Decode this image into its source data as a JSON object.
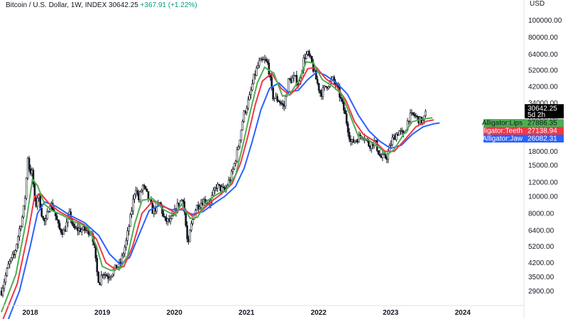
{
  "header": {
    "symbol": "Bitcoin / U.S. Dollar, 1W, INDEX",
    "price": "30642.25",
    "change": "+367.91 (+1.22%)"
  },
  "y_axis_unit": "USD",
  "price_tag": {
    "value": "30642.25",
    "countdown": "5d 2h"
  },
  "indicators": [
    {
      "name": "Alligator:Lips",
      "value": "27886.35",
      "color": "#4caf50"
    },
    {
      "name": "Alligator:Teeth",
      "value": "27138.94",
      "color": "#f23645"
    },
    {
      "name": "Alligator:Jaw",
      "value": "26082.31",
      "color": "#2962ff"
    }
  ],
  "colors": {
    "candle": "#131722",
    "background": "#ffffff",
    "tag_bg": "#000000"
  },
  "chart_data": {
    "type": "line",
    "scale": "log",
    "y_ticks": [
      100000,
      80000,
      64000,
      52000,
      42000,
      34000,
      28000,
      22000,
      18000,
      15000,
      12000,
      10000,
      8000,
      6400,
      5200,
      4200,
      3500,
      2900
    ],
    "y_tick_labels": [
      "100000.00",
      "80000.00",
      "64000.00",
      "52000.00",
      "42000.00",
      "34000.00",
      "28000.00",
      "22000.00",
      "18000.00",
      "15000.00",
      "12000.00",
      "10000.00",
      "8000.00",
      "6400.00",
      "5200.00",
      "4200.00",
      "3500.00",
      "2900.00"
    ],
    "x_tick_labels": [
      "2018",
      "2019",
      "2020",
      "2021",
      "2022",
      "2023",
      "2024"
    ],
    "x_ticks": [
      2018,
      2019,
      2020,
      2021,
      2022,
      2023,
      2024
    ],
    "x_range": [
      2017.58,
      2024.85
    ],
    "y_range": [
      2400,
      130000
    ],
    "price_points": [
      [
        2017.6,
        2900
      ],
      [
        2017.7,
        4100
      ],
      [
        2017.78,
        4700
      ],
      [
        2017.85,
        6500
      ],
      [
        2017.9,
        8000
      ],
      [
        2017.94,
        11000
      ],
      [
        2017.96,
        17500
      ],
      [
        2017.99,
        14000
      ],
      [
        2018.03,
        13500
      ],
      [
        2018.07,
        8500
      ],
      [
        2018.11,
        10500
      ],
      [
        2018.17,
        7500
      ],
      [
        2018.21,
        7000
      ],
      [
        2018.27,
        9300
      ],
      [
        2018.33,
        8300
      ],
      [
        2018.4,
        6500
      ],
      [
        2018.47,
        6300
      ],
      [
        2018.55,
        8000
      ],
      [
        2018.6,
        6500
      ],
      [
        2018.68,
        6500
      ],
      [
        2018.78,
        6400
      ],
      [
        2018.85,
        6300
      ],
      [
        2018.88,
        5500
      ],
      [
        2018.92,
        3800
      ],
      [
        2018.96,
        3200
      ],
      [
        2019.0,
        3750
      ],
      [
        2019.08,
        3500
      ],
      [
        2019.18,
        3900
      ],
      [
        2019.25,
        4100
      ],
      [
        2019.33,
        5500
      ],
      [
        2019.4,
        8000
      ],
      [
        2019.46,
        11500
      ],
      [
        2019.5,
        9500
      ],
      [
        2019.56,
        11500
      ],
      [
        2019.63,
        10000
      ],
      [
        2019.7,
        8200
      ],
      [
        2019.8,
        9200
      ],
      [
        2019.86,
        7300
      ],
      [
        2019.95,
        7200
      ],
      [
        2020.05,
        9000
      ],
      [
        2020.12,
        9800
      ],
      [
        2020.19,
        5000
      ],
      [
        2020.22,
        6500
      ],
      [
        2020.3,
        8700
      ],
      [
        2020.4,
        9500
      ],
      [
        2020.5,
        9200
      ],
      [
        2020.58,
        11500
      ],
      [
        2020.7,
        10700
      ],
      [
        2020.8,
        13500
      ],
      [
        2020.88,
        18500
      ],
      [
        2020.96,
        29000
      ],
      [
        2021.04,
        36000
      ],
      [
        2021.1,
        47000
      ],
      [
        2021.17,
        57000
      ],
      [
        2021.25,
        59000
      ],
      [
        2021.3,
        56000
      ],
      [
        2021.36,
        37000
      ],
      [
        2021.45,
        35000
      ],
      [
        2021.52,
        32000
      ],
      [
        2021.58,
        45000
      ],
      [
        2021.67,
        47000
      ],
      [
        2021.73,
        43000
      ],
      [
        2021.8,
        62000
      ],
      [
        2021.85,
        64000
      ],
      [
        2021.9,
        58000
      ],
      [
        2021.96,
        47000
      ],
      [
        2022.03,
        38000
      ],
      [
        2022.1,
        42000
      ],
      [
        2022.2,
        46000
      ],
      [
        2022.28,
        39000
      ],
      [
        2022.36,
        30000
      ],
      [
        2022.45,
        20000
      ],
      [
        2022.52,
        21000
      ],
      [
        2022.62,
        22500
      ],
      [
        2022.7,
        19500
      ],
      [
        2022.78,
        20500
      ],
      [
        2022.86,
        16500
      ],
      [
        2022.95,
        16800
      ],
      [
        2023.02,
        21000
      ],
      [
        2023.12,
        23500
      ],
      [
        2023.18,
        22000
      ],
      [
        2023.25,
        28000
      ],
      [
        2023.32,
        29000
      ],
      [
        2023.4,
        27000
      ],
      [
        2023.45,
        26500
      ],
      [
        2023.5,
        30642
      ]
    ],
    "lips_points": [
      [
        2017.6,
        2200
      ],
      [
        2017.8,
        3600
      ],
      [
        2017.95,
        7500
      ],
      [
        2018.03,
        12500
      ],
      [
        2018.1,
        11500
      ],
      [
        2018.2,
        9000
      ],
      [
        2018.3,
        8300
      ],
      [
        2018.45,
        7800
      ],
      [
        2018.6,
        7200
      ],
      [
        2018.8,
        6700
      ],
      [
        2018.92,
        5200
      ],
      [
        2019.0,
        4000
      ],
      [
        2019.12,
        3800
      ],
      [
        2019.25,
        3900
      ],
      [
        2019.35,
        4600
      ],
      [
        2019.45,
        7000
      ],
      [
        2019.55,
        9500
      ],
      [
        2019.7,
        9700
      ],
      [
        2019.85,
        8400
      ],
      [
        2020.0,
        7800
      ],
      [
        2020.1,
        9000
      ],
      [
        2020.22,
        7500
      ],
      [
        2020.32,
        7600
      ],
      [
        2020.45,
        9400
      ],
      [
        2020.58,
        10200
      ],
      [
        2020.72,
        10900
      ],
      [
        2020.85,
        13200
      ],
      [
        2020.95,
        19500
      ],
      [
        2021.05,
        30000
      ],
      [
        2021.15,
        44000
      ],
      [
        2021.25,
        54000
      ],
      [
        2021.38,
        50000
      ],
      [
        2021.5,
        37000
      ],
      [
        2021.6,
        38000
      ],
      [
        2021.72,
        45000
      ],
      [
        2021.83,
        58000
      ],
      [
        2021.93,
        57000
      ],
      [
        2022.05,
        46000
      ],
      [
        2022.2,
        42000
      ],
      [
        2022.32,
        38000
      ],
      [
        2022.45,
        28000
      ],
      [
        2022.55,
        22000
      ],
      [
        2022.7,
        20800
      ],
      [
        2022.85,
        18800
      ],
      [
        2022.95,
        17200
      ],
      [
        2023.05,
        18500
      ],
      [
        2023.18,
        22500
      ],
      [
        2023.3,
        26500
      ],
      [
        2023.45,
        27500
      ],
      [
        2023.58,
        27886
      ]
    ],
    "teeth_points": [
      [
        2017.62,
        2000
      ],
      [
        2017.82,
        3200
      ],
      [
        2017.97,
        6200
      ],
      [
        2018.06,
        10000
      ],
      [
        2018.15,
        10300
      ],
      [
        2018.25,
        9200
      ],
      [
        2018.4,
        8200
      ],
      [
        2018.55,
        7600
      ],
      [
        2018.75,
        6900
      ],
      [
        2018.92,
        5700
      ],
      [
        2019.05,
        4200
      ],
      [
        2019.18,
        3850
      ],
      [
        2019.3,
        4000
      ],
      [
        2019.42,
        5200
      ],
      [
        2019.55,
        8000
      ],
      [
        2019.7,
        9400
      ],
      [
        2019.85,
        8800
      ],
      [
        2020.0,
        8100
      ],
      [
        2020.12,
        8600
      ],
      [
        2020.25,
        7700
      ],
      [
        2020.38,
        8300
      ],
      [
        2020.52,
        9400
      ],
      [
        2020.65,
        10300
      ],
      [
        2020.8,
        11800
      ],
      [
        2020.92,
        15500
      ],
      [
        2021.02,
        22000
      ],
      [
        2021.12,
        33000
      ],
      [
        2021.22,
        45000
      ],
      [
        2021.35,
        50000
      ],
      [
        2021.48,
        41000
      ],
      [
        2021.6,
        37500
      ],
      [
        2021.72,
        42000
      ],
      [
        2021.85,
        53000
      ],
      [
        2021.97,
        54000
      ],
      [
        2022.1,
        46500
      ],
      [
        2022.25,
        42000
      ],
      [
        2022.38,
        35000
      ],
      [
        2022.5,
        26500
      ],
      [
        2022.62,
        22500
      ],
      [
        2022.78,
        20500
      ],
      [
        2022.92,
        18000
      ],
      [
        2023.05,
        18000
      ],
      [
        2023.2,
        21000
      ],
      [
        2023.35,
        24800
      ],
      [
        2023.5,
        26700
      ],
      [
        2023.6,
        27139
      ]
    ],
    "jaw_points": [
      [
        2017.65,
        1800
      ],
      [
        2017.85,
        2900
      ],
      [
        2018.0,
        5200
      ],
      [
        2018.1,
        8000
      ],
      [
        2018.2,
        9300
      ],
      [
        2018.35,
        8800
      ],
      [
        2018.55,
        7800
      ],
      [
        2018.75,
        7100
      ],
      [
        2018.95,
        6000
      ],
      [
        2019.1,
        4700
      ],
      [
        2019.25,
        4100
      ],
      [
        2019.38,
        4500
      ],
      [
        2019.52,
        6200
      ],
      [
        2019.65,
        8300
      ],
      [
        2019.8,
        8900
      ],
      [
        2019.95,
        8400
      ],
      [
        2020.1,
        8400
      ],
      [
        2020.25,
        7900
      ],
      [
        2020.4,
        8200
      ],
      [
        2020.55,
        9100
      ],
      [
        2020.7,
        10000
      ],
      [
        2020.85,
        11400
      ],
      [
        2020.97,
        14500
      ],
      [
        2021.08,
        20500
      ],
      [
        2021.2,
        31000
      ],
      [
        2021.32,
        41000
      ],
      [
        2021.45,
        44000
      ],
      [
        2021.58,
        39000
      ],
      [
        2021.72,
        40000
      ],
      [
        2021.85,
        46000
      ],
      [
        2021.98,
        51000
      ],
      [
        2022.1,
        48500
      ],
      [
        2022.25,
        44000
      ],
      [
        2022.4,
        38000
      ],
      [
        2022.55,
        29000
      ],
      [
        2022.7,
        23500
      ],
      [
        2022.85,
        20500
      ],
      [
        2023.0,
        18700
      ],
      [
        2023.15,
        19500
      ],
      [
        2023.3,
        22500
      ],
      [
        2023.45,
        24800
      ],
      [
        2023.6,
        25800
      ],
      [
        2023.68,
        26082
      ]
    ]
  }
}
